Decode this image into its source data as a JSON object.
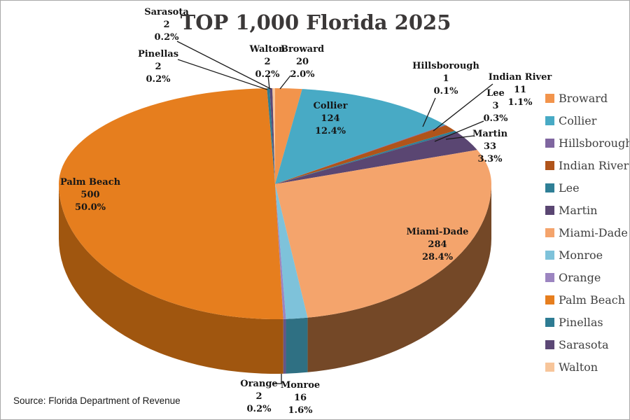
{
  "title": "TOP 1,000 Florida 2025",
  "source_note": "Source: Florida Department of Revenue",
  "chart_data": {
    "type": "pie",
    "style": "3d-exploded-none",
    "title": "TOP 1,000 Florida 2025",
    "total": 1000,
    "legend_position": "right",
    "text_color": "#161616",
    "slices": [
      {
        "name": "Broward",
        "value": 20,
        "pct_label": "2.0%",
        "color": "#F2944C"
      },
      {
        "name": "Collier",
        "value": 124,
        "pct_label": "12.4%",
        "color": "#48AAC5"
      },
      {
        "name": "Hillsborough",
        "value": 1,
        "pct_label": "0.1%",
        "color": "#7F66A0"
      },
      {
        "name": "Indian River",
        "value": 11,
        "pct_label": "1.1%",
        "color": "#B0541A"
      },
      {
        "name": "Lee",
        "value": 3,
        "pct_label": "0.3%",
        "color": "#2F7F96"
      },
      {
        "name": "Martin",
        "value": 33,
        "pct_label": "3.3%",
        "color": "#5A4672"
      },
      {
        "name": "Miami-Dade",
        "value": 284,
        "pct_label": "28.4%",
        "color": "#F4A46C"
      },
      {
        "name": "Monroe",
        "value": 16,
        "pct_label": "1.6%",
        "color": "#7EC2DA"
      },
      {
        "name": "Orange",
        "value": 2,
        "pct_label": "0.2%",
        "color": "#9C85C0"
      },
      {
        "name": "Palm Beach",
        "value": 500,
        "pct_label": "50.0%",
        "color": "#E67E1E"
      },
      {
        "name": "Pinellas",
        "value": 2,
        "pct_label": "0.2%",
        "color": "#2E7C93"
      },
      {
        "name": "Sarasota",
        "value": 2,
        "pct_label": "0.2%",
        "color": "#5C4876"
      },
      {
        "name": "Walton",
        "value": 2,
        "pct_label": "0.2%",
        "color": "#F7C59A"
      }
    ]
  }
}
